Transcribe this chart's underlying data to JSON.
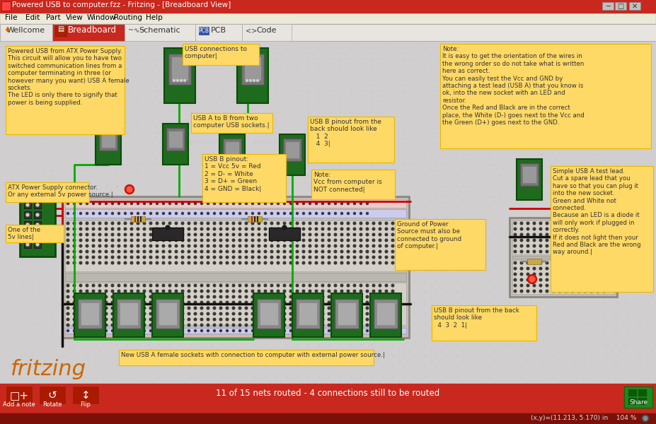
{
  "title_bar": "Powered USB to computer.fzz - Fritzing - [Breadboard View]",
  "title_bar_color": "#c8281e",
  "menu_bg": "#ece9d8",
  "menu_items": [
    "File",
    "Edit",
    "Part",
    "View",
    "Window",
    "Routing",
    "Help"
  ],
  "tab_bar_bg": "#f0eeeb",
  "tab_bar_border": "#999999",
  "tab_active_color": "#c8281e",
  "tab_active_text": "#ffffff",
  "tab_inactive_bg": "#f0eeeb",
  "tab_inactive_text": "#333333",
  "canvas_bg": "#d0cece",
  "note_bg": "#ffd966",
  "note_border": "#e6b800",
  "note_text_color": "#333333",
  "green_pcb": "#1e6b1e",
  "green_pcb_dark": "#0a4a0a",
  "green_pcb_inner": "#2a8a2a",
  "connector_gray": "#888888",
  "connector_silver": "#aaaaaa",
  "wire_red": "#cc0000",
  "wire_green": "#00aa00",
  "wire_black": "#111111",
  "wire_white": "#cccccc",
  "breadboard_bg": "#c8c4be",
  "breadboard_body": "#d8d4cc",
  "breadboard_hole": "#555550",
  "bottom_bar_color": "#c8281e",
  "bottom_text": "11 of 15 nets routed - 4 connections still to be routed",
  "share_btn_color": "#1e8a1e",
  "status_bar_color": "#8b1a10",
  "status_text": "(x,y)=(11.213, 5.170) in    104 %",
  "fritzing_color": "#cc6600",
  "note1_text": "Powered USB from ATX Power Supply.\nThis circuit will allow you to have two\nswitched communication lines from a\ncomputer terminating in three (or\nhowever many you want) USB A female\nsockets.\nThe LED is only there to signify that\npower is being supplied.",
  "note2_text": "USB connections to\ncomputer|",
  "note3_text": "USB A to B from two\ncomputer USB sockets.|",
  "note4_text": "USB B pinout from the\nback should look like\n   1  2\n   4  3|",
  "note5_text": "USB B pinout:\n1 = Vcc 5v = Red\n2 = D- = White\n3 = D+ = Green\n4 = GND = Black|",
  "note6_text": "Note:\nVcc from computer is\nNOT connected|",
  "note7_text": "Note:\nIt is easy to get the orientation of the wires in\nthe wrong order so do not take what is written\nhere as correct.\nYou can easily test the Vcc and GND by\nattaching a test lead (USB A) that you know is\nok, into the new socket with an LED and\nresistor.\nOnce the Red and Black are in the correct\nplace, the White (D-) goes next to the Vcc and\nthe Green (D+) goes next to the GND.",
  "note8_text": "ATX Power Supply connector.\nOr any external 5v power source.|",
  "note9_text": "One of the\n5v lines|",
  "note10_text": "Ground of Power\nSource must also be\nconnected to ground\nof computer.|",
  "note11_text": "Simple USB A test lead.\nCut a spare lead that you\nhave so that you can plug it\ninto the new socket.\nGreen and White not\nconnected.\nBecause an LED is a diode it\nwill only work if plugged in\ncorrectly.\nIf it does not light then your\nRed and Black are the wrong\nway around.|",
  "note12_text": "USB B pinout from the back\nshould look like\n  4  3  2  1|",
  "note13_text": "New USB A female sockets with connection to computer with external power source.|"
}
